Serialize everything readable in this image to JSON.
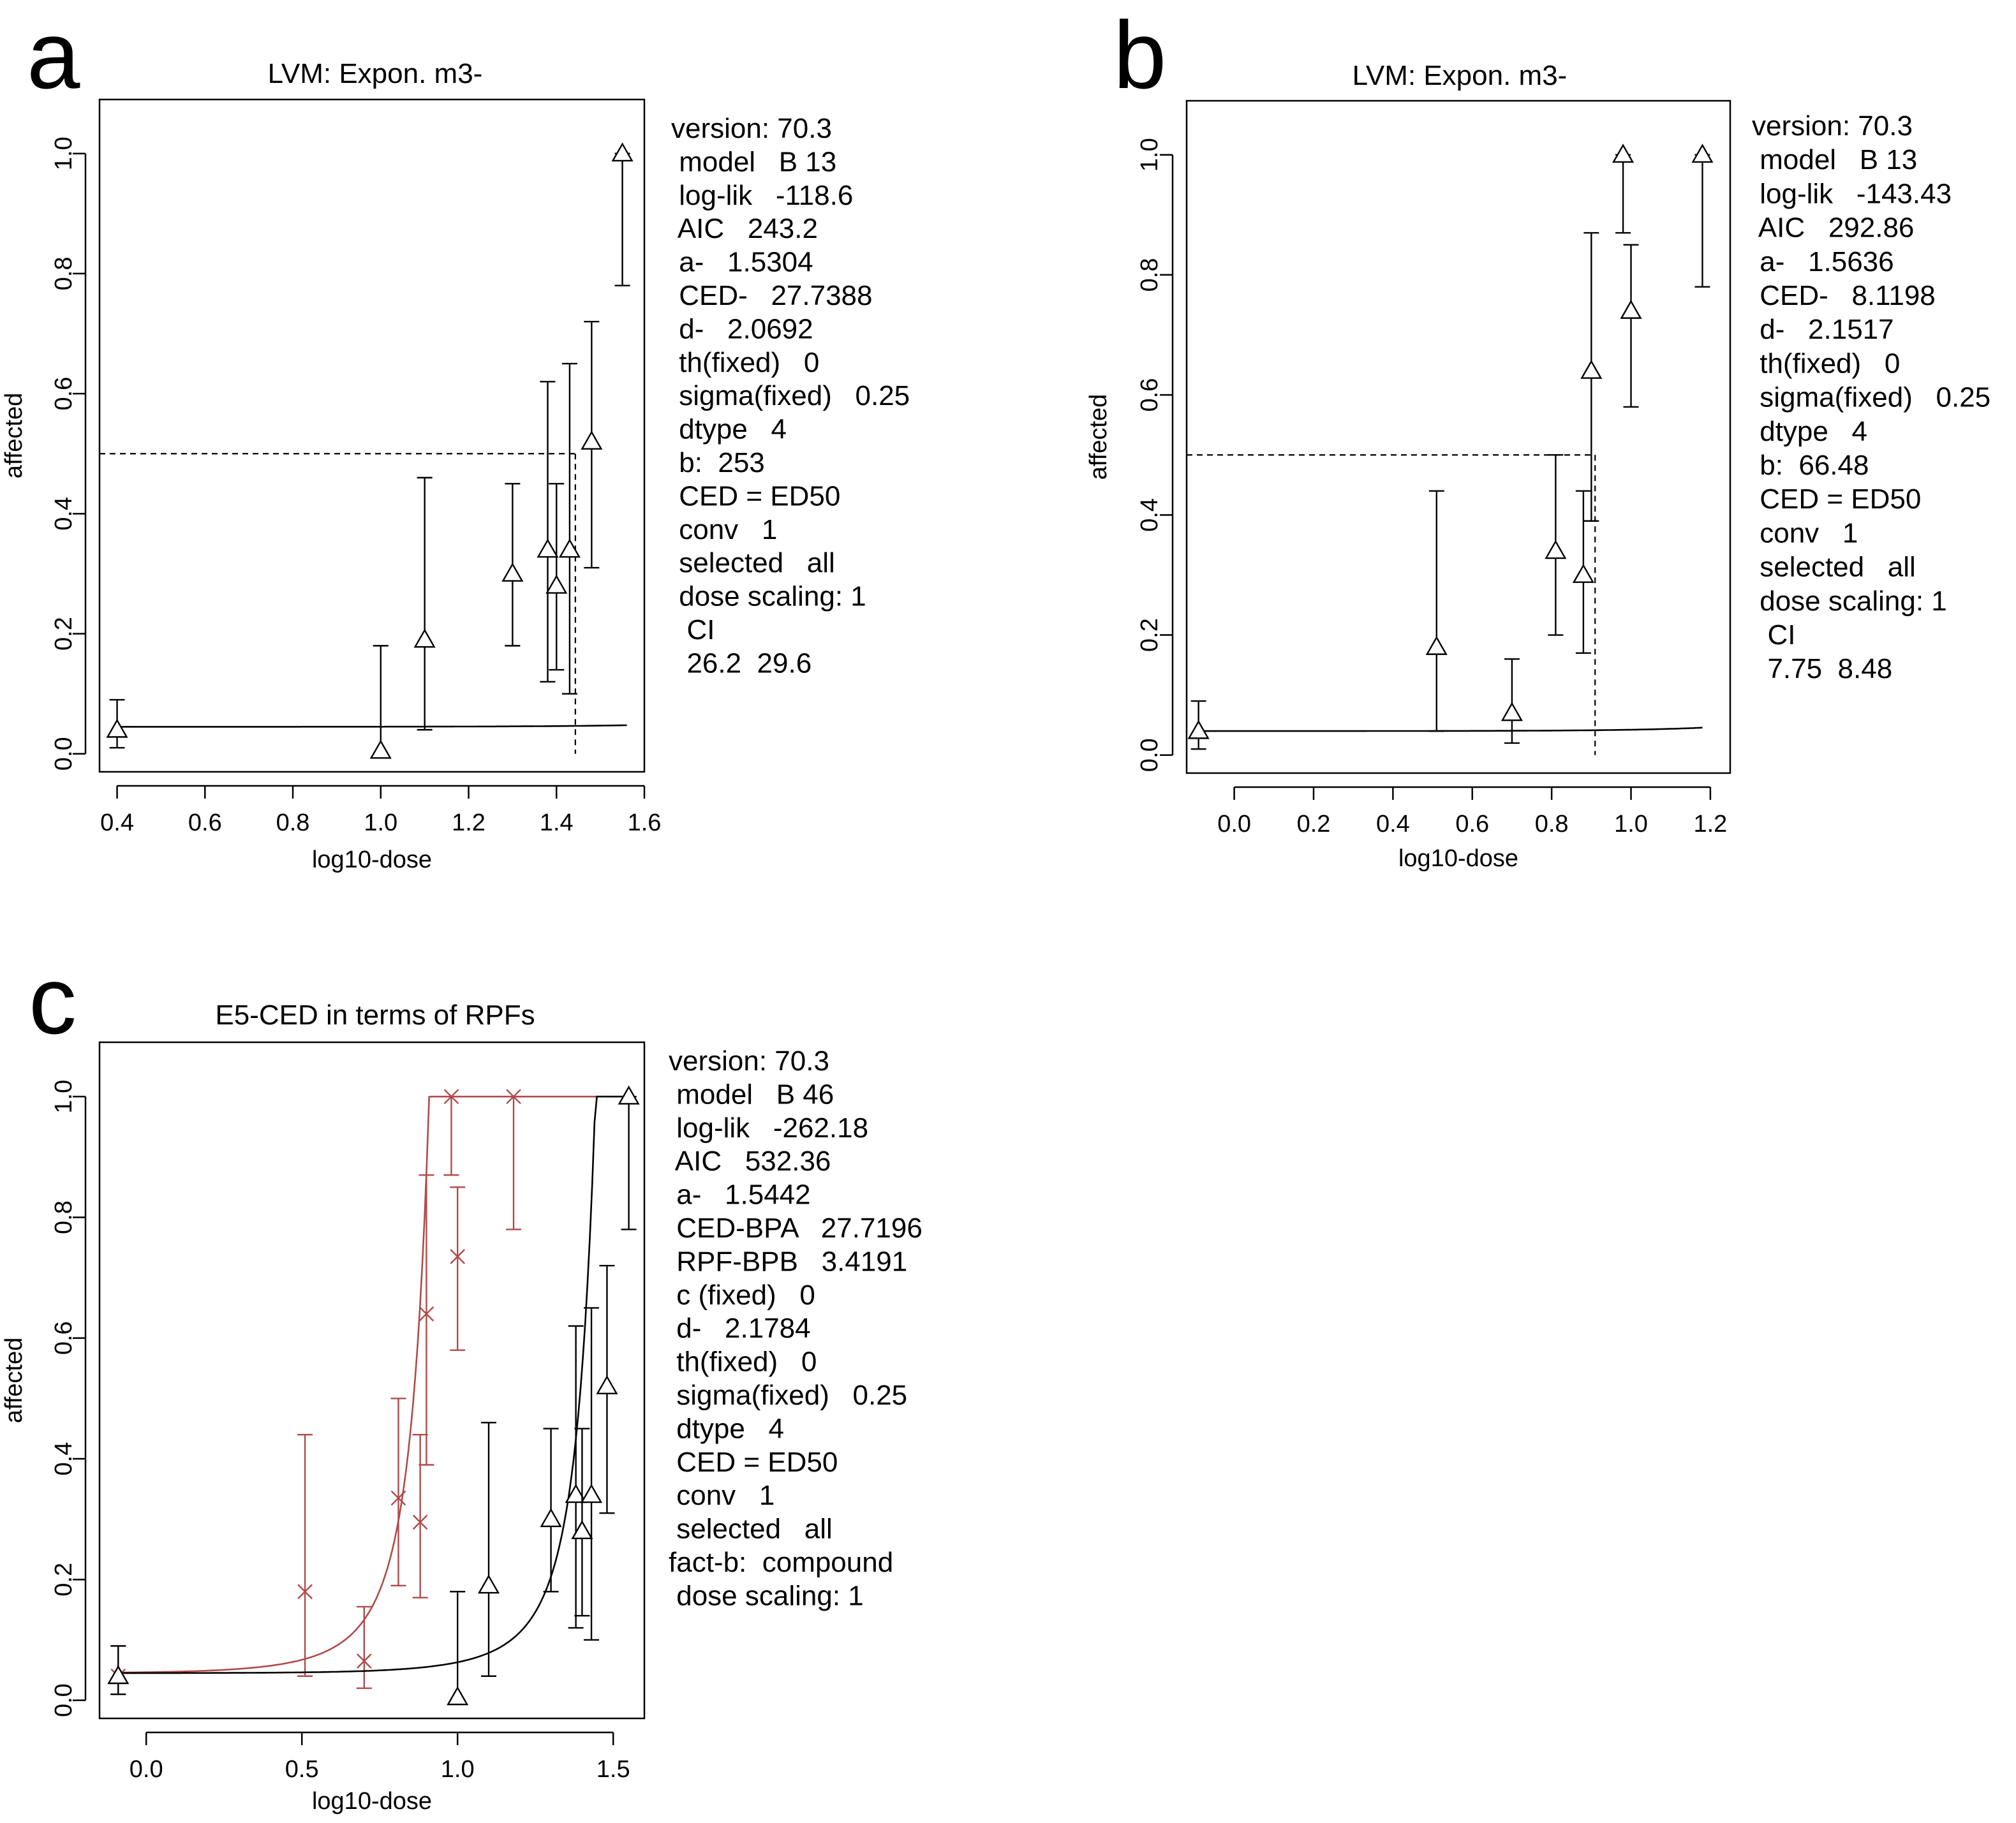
{
  "panels": [
    {
      "letter": "a",
      "title": "LVM: Expon. m3-",
      "info": [
        "version: 70.3",
        " model   B 13",
        " log-lik   -118.6",
        " AIC   243.2",
        " a-   1.5304",
        " CED-   27.7388",
        " d-   2.0692",
        " th(fixed)   0",
        " sigma(fixed)   0.25",
        " dtype   4",
        " b:  253",
        " CED = ED50",
        " conv   1",
        " selected   all",
        " dose scaling: 1",
        "  CI",
        "  26.2  29.6"
      ]
    },
    {
      "letter": "b",
      "title": "LVM: Expon. m3-",
      "info": [
        "version: 70.3",
        " model   B 13",
        " log-lik   -143.43",
        " AIC   292.86",
        " a-   1.5636",
        " CED-   8.1198",
        " d-   2.1517",
        " th(fixed)   0",
        " sigma(fixed)   0.25",
        " dtype   4",
        " b:  66.48",
        " CED = ED50",
        " conv   1",
        " selected   all",
        " dose scaling: 1",
        "  CI",
        "  7.75  8.48"
      ]
    },
    {
      "letter": "c",
      "title": "E5-CED in terms of RPFs",
      "info": [
        "version: 70.3",
        " model   B 46",
        " log-lik   -262.18",
        " AIC   532.36",
        " a-   1.5442",
        " CED-BPA   27.7196",
        " RPF-BPB   3.4191",
        " c (fixed)   0",
        " d-   2.1784",
        " th(fixed)   0",
        " sigma(fixed)   0.25",
        " dtype   4",
        " CED = ED50",
        " conv   1",
        " selected   all",
        "fact-b:  compound",
        " dose scaling: 1"
      ]
    }
  ],
  "colors": {
    "black": "#000000",
    "red": "#b04a4a"
  },
  "chart_data": [
    {
      "type": "scatter",
      "title": "LVM: Expon. m3-",
      "xlabel": "log10-dose",
      "ylabel": "affected",
      "xlim": [
        0.36,
        1.6
      ],
      "ylim": [
        -0.03,
        1.09
      ],
      "xticks": [
        0.4,
        0.6,
        0.8,
        1.0,
        1.2,
        1.4,
        1.6
      ],
      "xtick_labels": [
        "0.4",
        "0.6",
        "0.8",
        "1.0",
        "1.2",
        "1.4",
        "1.6"
      ],
      "yticks": [
        0.0,
        0.2,
        0.4,
        0.6,
        0.8,
        1.0
      ],
      "ytick_labels": [
        "0.0",
        "0.2",
        "0.4",
        "0.6",
        "0.8",
        "1.0"
      ],
      "series": [
        {
          "color": "black",
          "marker": "triangle",
          "x": [
            0.4,
            1.0,
            1.1,
            1.3,
            1.38,
            1.4,
            1.43,
            1.48,
            1.55
          ],
          "y": [
            0.04,
            0.005,
            0.19,
            0.3,
            0.34,
            0.28,
            0.34,
            0.52,
            1.0
          ],
          "ci_low": [
            0.01,
            0.0,
            0.04,
            0.18,
            0.12,
            0.14,
            0.1,
            0.31,
            0.78
          ],
          "ci_high": [
            0.09,
            0.18,
            0.46,
            0.45,
            0.62,
            0.45,
            0.65,
            0.72,
            1.0
          ],
          "curve": {
            "a": 0.045,
            "b": 253,
            "d": 2.0692,
            "start_x": 0.4,
            "end_x": 1.56
          }
        }
      ],
      "reference": {
        "y": 0.5,
        "ced_x": 1.443
      }
    },
    {
      "type": "scatter",
      "title": "LVM: Expon. m3-",
      "xlabel": "log10-dose",
      "ylabel": "affected",
      "xlim": [
        -0.12,
        1.25
      ],
      "ylim": [
        -0.03,
        1.09
      ],
      "xticks": [
        0.0,
        0.2,
        0.4,
        0.6,
        0.8,
        1.0,
        1.2
      ],
      "xtick_labels": [
        "0.0",
        "0.2",
        "0.4",
        "0.6",
        "0.8",
        "1.0",
        "1.2"
      ],
      "yticks": [
        0.0,
        0.2,
        0.4,
        0.6,
        0.8,
        1.0
      ],
      "ytick_labels": [
        "0.0",
        "0.2",
        "0.4",
        "0.6",
        "0.8",
        "1.0"
      ],
      "series": [
        {
          "color": "black",
          "marker": "triangle",
          "x": [
            -0.09,
            0.51,
            0.7,
            0.81,
            0.88,
            0.9,
            0.98,
            1.0,
            1.18
          ],
          "y": [
            0.04,
            0.18,
            0.07,
            0.34,
            0.3,
            0.64,
            1.0,
            0.74,
            1.0
          ],
          "ci_low": [
            0.01,
            0.04,
            0.02,
            0.2,
            0.17,
            0.39,
            0.87,
            0.58,
            0.78
          ],
          "ci_high": [
            0.09,
            0.44,
            0.16,
            0.5,
            0.44,
            0.87,
            1.0,
            0.85,
            1.0
          ],
          "curve": {
            "a": 0.04,
            "b": 66.48,
            "d": 2.1517,
            "start_x": -0.09,
            "end_x": 1.18
          }
        }
      ],
      "reference": {
        "y": 0.5,
        "ced_x": 0.9095
      }
    },
    {
      "type": "scatter",
      "title": "E5-CED in terms of RPFs",
      "xlabel": "log10-dose",
      "ylabel": "affected",
      "xlim": [
        -0.15,
        1.6
      ],
      "ylim": [
        -0.03,
        1.09
      ],
      "xticks": [
        0.0,
        0.5,
        1.0,
        1.5
      ],
      "xtick_labels": [
        "0.0",
        "0.5",
        "1.0",
        "1.5"
      ],
      "yticks": [
        0.0,
        0.2,
        0.4,
        0.6,
        0.8,
        1.0
      ],
      "ytick_labels": [
        "0.0",
        "0.2",
        "0.4",
        "0.6",
        "0.8",
        "1.0"
      ],
      "series": [
        {
          "color": "red",
          "marker": "cross",
          "x": [
            -0.09,
            0.51,
            0.7,
            0.81,
            0.88,
            0.9,
            0.98,
            1.0,
            1.18
          ],
          "y": [
            0.04,
            0.18,
            0.065,
            0.335,
            0.295,
            0.64,
            1.0,
            0.735,
            1.0
          ],
          "ci_low": [
            0.01,
            0.04,
            0.02,
            0.19,
            0.17,
            0.39,
            0.87,
            0.58,
            0.78
          ],
          "ci_high": [
            0.09,
            0.44,
            0.155,
            0.5,
            0.44,
            0.87,
            1.0,
            0.85,
            1.0
          ],
          "curve": {
            "a": 0.045,
            "b": 8.1084,
            "d": 2.1784,
            "start_x": -0.09,
            "end_x": 1.55
          }
        },
        {
          "color": "black",
          "marker": "triangle",
          "x": [
            -0.09,
            1.0,
            1.1,
            1.3,
            1.38,
            1.4,
            1.43,
            1.48,
            1.55
          ],
          "y": [
            0.04,
            0.005,
            0.19,
            0.3,
            0.34,
            0.28,
            0.34,
            0.52,
            1.0
          ],
          "ci_low": [
            0.01,
            0.0,
            0.04,
            0.18,
            0.12,
            0.14,
            0.1,
            0.31,
            0.78
          ],
          "ci_high": [
            0.09,
            0.18,
            0.46,
            0.45,
            0.62,
            0.45,
            0.65,
            0.72,
            1.0
          ],
          "curve": {
            "a": 0.045,
            "b": 27.7196,
            "d": 2.1784,
            "start_x": -0.09,
            "end_x": 1.56
          }
        }
      ]
    }
  ]
}
